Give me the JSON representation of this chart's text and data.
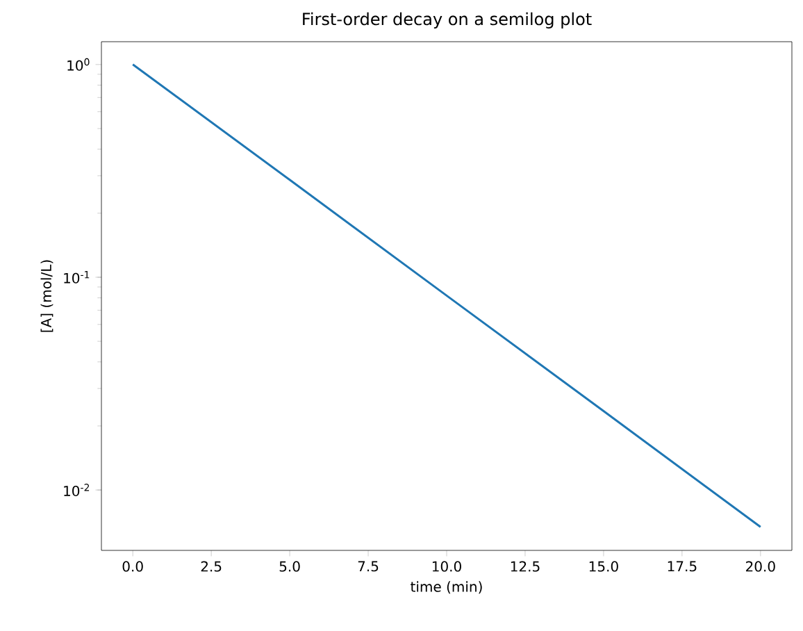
{
  "chart_data": {
    "type": "line",
    "title": "First-order decay on a semilog plot",
    "xlabel": "time (min)",
    "ylabel": "[A] (mol/L)",
    "x": [
      0,
      5,
      10,
      15,
      20
    ],
    "series": [
      {
        "color": "#1f77b4",
        "values": [
          1.0,
          0.287,
          0.082,
          0.0235,
          0.0067
        ]
      }
    ],
    "log": "y",
    "xlim": [
      -1,
      21
    ],
    "ylim": [
      0.0052,
      1.28
    ],
    "xticks": [
      {
        "value": 0,
        "label": "0.0"
      },
      2.5,
      {
        "value": 5,
        "label": "5.0"
      },
      7.5,
      {
        "value": 10,
        "label": "10.0"
      },
      12.5,
      {
        "value": 15,
        "label": "15.0"
      },
      17.5,
      {
        "value": 20,
        "label": "20.0"
      }
    ],
    "yticks": [
      {
        "value": 0.01,
        "label": "10$^{-2}$"
      },
      {
        "value": 0.1,
        "label": "10$^{-1}$"
      },
      {
        "value": 1,
        "label": "10$^{0}$"
      }
    ],
    "grid": false,
    "marker": "none",
    "line_style": "solid"
  }
}
